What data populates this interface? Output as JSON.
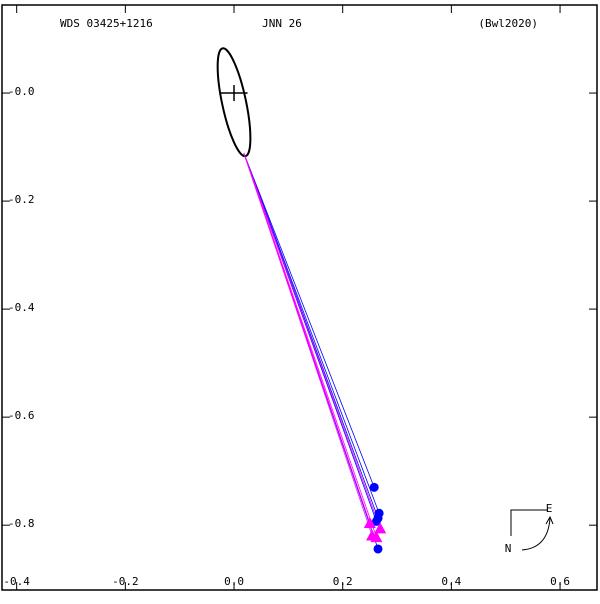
{
  "chart_data": {
    "type": "orbit",
    "title_left": "WDS 03425+1216",
    "title_center": "JNN  26",
    "title_right": "(Bwl2020)",
    "compass": {
      "east": "E",
      "north": "N"
    },
    "xlim": [
      -0.427,
      0.668
    ],
    "ylim": [
      -0.92,
      0.163
    ],
    "xticks": [
      -0.4,
      -0.2,
      {
        "value": 0,
        "label": "0.0"
      },
      0.2,
      0.4,
      0.6
    ],
    "yticks": [
      {
        "value": 0,
        "label": "-0.0"
      },
      -0.2,
      -0.4,
      -0.6,
      -0.8
    ],
    "orbit": {
      "x_center": 0.0,
      "y_center": -0.017,
      "a": 0.102,
      "b": 0.022,
      "tilt_deg": 12,
      "color": "#000000"
    },
    "primary": {
      "x": 0,
      "y": 0,
      "half_width": 0.025
    },
    "series": [
      {
        "marker": "circle",
        "color": "#0000ff",
        "x": [
          0.258,
          0.267,
          0.265,
          0.262,
          0.265
        ],
        "values": [
          -0.73,
          -0.778,
          -0.787,
          -0.793,
          -0.844
        ],
        "predicted_x": [
          0.018,
          0.018,
          0.018,
          0.018,
          0.018
        ],
        "predicted_y": [
          -0.111,
          -0.111,
          -0.111,
          -0.111,
          -0.111
        ]
      },
      {
        "marker": "triangle",
        "color": "#ff00ff",
        "x": [
          0.25,
          0.269,
          0.254,
          0.262
        ],
        "values": [
          -0.796,
          -0.806,
          -0.819,
          -0.822
        ],
        "predicted_x": [
          0.018,
          0.018,
          0.018,
          0.018
        ],
        "predicted_y": [
          -0.111,
          -0.111,
          -0.111,
          -0.111
        ]
      }
    ]
  }
}
